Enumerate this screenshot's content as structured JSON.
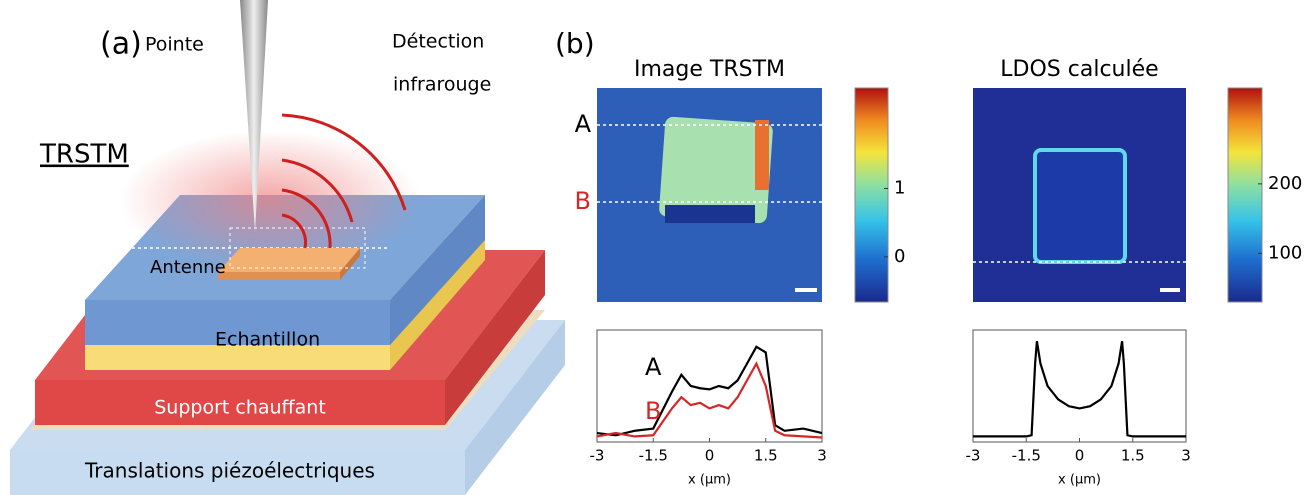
{
  "panel_a": {
    "label": "(a)",
    "title": "TRSTM",
    "tip": "Pointe",
    "detection_line1": "Détection",
    "detection_line2": "infrarouge",
    "antenna": "Antenne",
    "sample": "Echantillon",
    "heater": "Support chauffant",
    "stage": "Translations piézoélectriques"
  },
  "panel_b_label": "(b)",
  "chart_data": [
    {
      "type": "heatmap",
      "title": "Image TRSTM",
      "markers": [
        {
          "name": "A",
          "color": "#000000"
        },
        {
          "name": "B",
          "color": "#d62728"
        }
      ],
      "colorbar_lim": [
        -0.66,
        2.47
      ],
      "colorbar_ticks": [
        0,
        1
      ]
    },
    {
      "type": "heatmap",
      "title": "LDOS calculée",
      "colorbar_lim": [
        30,
        338
      ],
      "colorbar_ticks": [
        100,
        200
      ]
    },
    {
      "type": "line",
      "x": [
        -3,
        -2.5,
        -2,
        -1.5,
        -1,
        -0.75,
        -0.5,
        -0.25,
        0,
        0.25,
        0.5,
        0.75,
        1,
        1.25,
        1.5,
        1.75,
        2,
        2.5,
        3
      ],
      "series": [
        {
          "name": "A",
          "color": "#000000",
          "values": [
            0.08,
            0.06,
            0.1,
            0.12,
            0.45,
            0.6,
            0.5,
            0.48,
            0.47,
            0.5,
            0.48,
            0.55,
            0.7,
            0.85,
            0.8,
            0.15,
            0.1,
            0.12,
            0.08
          ]
        },
        {
          "name": "B",
          "color": "#d62728",
          "values": [
            0.05,
            0.08,
            0.05,
            0.06,
            0.3,
            0.4,
            0.33,
            0.35,
            0.3,
            0.33,
            0.3,
            0.4,
            0.55,
            0.7,
            0.5,
            0.1,
            0.06,
            0.05,
            0.04
          ]
        }
      ],
      "xlim": [
        -3,
        3
      ],
      "xticks": [
        -3,
        -1.5,
        0,
        1.5,
        3
      ],
      "ylim": [
        0,
        1
      ],
      "xlabel": "x (µm)"
    },
    {
      "type": "line",
      "x": [
        -3,
        -2,
        -1.5,
        -1.35,
        -1.25,
        -1.2,
        -1.1,
        -0.9,
        -0.6,
        -0.3,
        0,
        0.3,
        0.6,
        0.9,
        1.1,
        1.2,
        1.25,
        1.35,
        1.5,
        2,
        3
      ],
      "values": [
        0.05,
        0.05,
        0.05,
        0.06,
        0.7,
        0.9,
        0.7,
        0.5,
        0.38,
        0.32,
        0.3,
        0.32,
        0.38,
        0.5,
        0.7,
        0.9,
        0.7,
        0.06,
        0.05,
        0.05,
        0.05
      ],
      "color": "#000000",
      "xlim": [
        -3,
        3
      ],
      "xticks": [
        -3,
        -1.5,
        0,
        1.5,
        3
      ],
      "ylim": [
        0,
        1
      ],
      "xlabel": "x (µm)"
    }
  ]
}
